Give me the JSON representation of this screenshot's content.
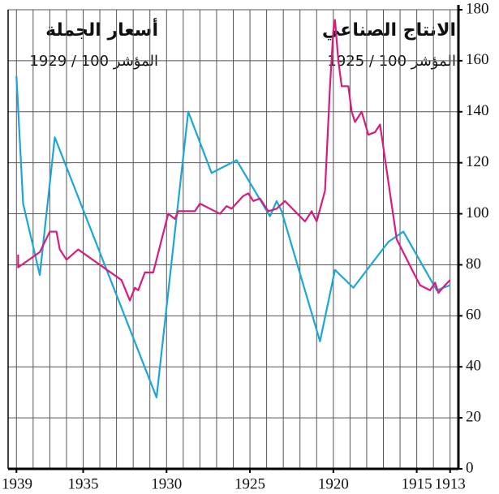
{
  "chart_data": {
    "type": "line",
    "annotations": [
      "أسعار الجملة",
      "المؤشر 100 / 1929",
      "الانتاج الصناعي",
      "المؤشر 100 / 1925"
    ],
    "series": [
      {
        "name": "أسعار الجملة",
        "color": "#1aa7d8",
        "x": [
          1939.0,
          1938.6,
          1937.6,
          1936.7,
          1930.6,
          1928.7,
          1927.3,
          1925.8,
          1923.8,
          1923.4,
          1923.1,
          1920.8,
          1919.9,
          1918.8,
          1916.7,
          1915.8,
          1913.8,
          1913.0
        ],
        "values": [
          154,
          104,
          76,
          130,
          28,
          140,
          116,
          121,
          99,
          105,
          101,
          50,
          78,
          71,
          89,
          93,
          70,
          72
        ]
      },
      {
        "name": "الانتاج الصناعي",
        "color": "#d81b7f",
        "x": [
          1938.9,
          1938.9,
          1937.6,
          1937.0,
          1936.6,
          1936.4,
          1936.0,
          1935.3,
          1932.7,
          1932.2,
          1931.9,
          1931.7,
          1931.3,
          1930.8,
          1929.9,
          1929.5,
          1929.3,
          1928.3,
          1928.0,
          1926.8,
          1926.4,
          1926.1,
          1925.4,
          1925.1,
          1924.8,
          1924.4,
          1923.9,
          1923.4,
          1922.9,
          1921.7,
          1921.3,
          1921.0,
          1920.5,
          1920.2,
          1920.0,
          1919.9,
          1919.7,
          1919.5,
          1919.1,
          1918.9,
          1918.7,
          1918.3,
          1917.9,
          1917.5,
          1917.2,
          1916.2,
          1915.2,
          1914.8,
          1914.2,
          1913.9,
          1913.7,
          1913.3,
          1913.0
        ],
        "values": [
          84,
          79,
          85,
          93,
          93,
          86,
          82,
          86,
          74,
          66,
          71,
          70,
          77,
          77,
          100,
          98,
          101,
          101,
          104,
          100,
          103,
          102,
          107,
          108,
          105,
          106,
          101,
          102,
          105,
          97,
          101,
          97,
          109,
          150,
          172,
          176,
          160,
          150,
          150,
          140,
          136,
          140,
          131,
          132,
          135,
          90,
          77,
          72,
          70,
          73,
          69,
          72,
          74
        ]
      }
    ],
    "xlim": [
      1939.5,
      1912.5
    ],
    "xticks": [
      1939,
      1935,
      1930,
      1925,
      1920,
      1915,
      1913
    ],
    "ylim": [
      0,
      180
    ],
    "yticks": [
      0,
      20,
      40,
      60,
      80,
      100,
      120,
      140,
      160,
      180
    ],
    "grid": true
  }
}
